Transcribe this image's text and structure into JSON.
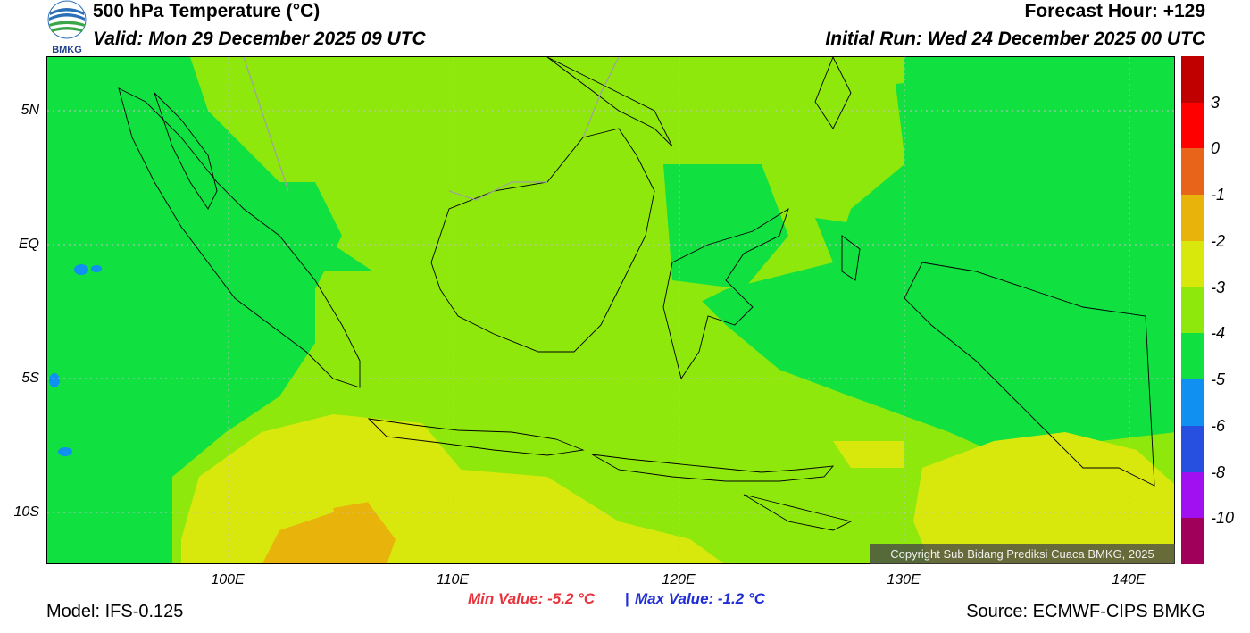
{
  "header": {
    "logo_text": "BMKG",
    "title": "500 hPa Temperature (°C)",
    "valid": "Valid: Mon 29 December 2025 09 UTC",
    "forecast_hour": "Forecast Hour: +129",
    "initial_run": "Initial Run: Wed 24 December 2025 00 UTC"
  },
  "map": {
    "lat_labels": [
      "5N",
      "EQ",
      "5S",
      "10S"
    ],
    "lon_labels": [
      "100E",
      "110E",
      "120E",
      "130E",
      "140E"
    ],
    "copyright": "Copyright Sub Bidang Prediksi Cuaca BMKG, 2025"
  },
  "stats": {
    "min": "Min Value: -5.2 °C",
    "separator": "|",
    "max": "Max Value: -1.2 °C"
  },
  "footer": {
    "model": "Model: IFS-0.125",
    "source": "Source: ECMWF-CIPS BMKG"
  },
  "colorbar": {
    "labels": [
      "3",
      "0",
      "-1",
      "-2",
      "-3",
      "-4",
      "-5",
      "-6",
      "-8",
      "-10"
    ],
    "colors": [
      "#c00000",
      "#ff0000",
      "#e8641a",
      "#e8b40c",
      "#d8e80c",
      "#8ee80c",
      "#10e040",
      "#1090f0",
      "#2850e0",
      "#a010f0",
      "#a0005a"
    ]
  }
}
